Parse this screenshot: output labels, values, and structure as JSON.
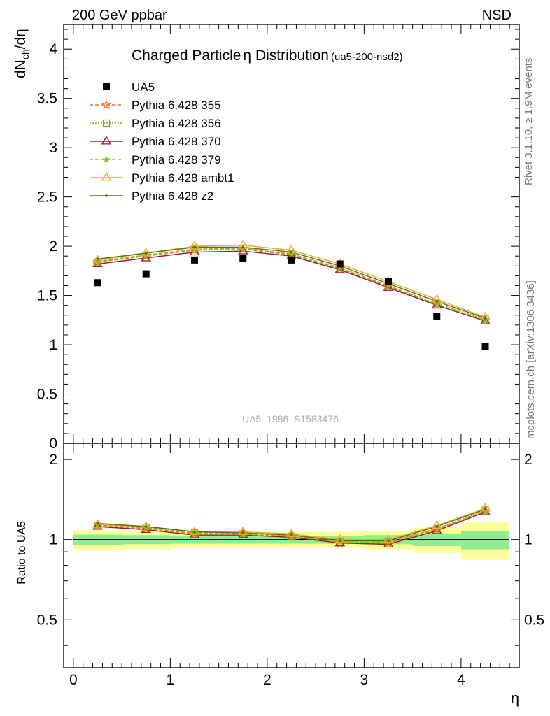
{
  "header": {
    "left": "200 GeV ppbar",
    "right": "NSD"
  },
  "side_labels": {
    "rivet": "Rivet 3.1.10, ≥ 1.9M events",
    "mcplots": "mcplots.cern.ch [arXiv:1306.3436]"
  },
  "colors": {
    "band_inner": "#90ee90",
    "band_outer": "#ffff99"
  },
  "chart_data": [
    {
      "panel": "main",
      "type": "line",
      "title": "Charged Particle",
      "title_symbol": "η",
      "title_rest": " Distribution",
      "title_tag": "(ua5-200-nsd2)",
      "ylabel_main": "dN",
      "ylabel_sub": "ch",
      "ylabel_rest": "/dη",
      "xlim": [
        -0.1,
        4.6
      ],
      "ylim": [
        0,
        4.25
      ],
      "y_ticks": [
        0,
        0.5,
        1,
        1.5,
        2,
        2.5,
        3,
        3.5,
        4
      ],
      "y_tick_labels": [
        "0",
        "0.5",
        "1",
        "1.5",
        "2",
        "2.5",
        "3",
        "3.5",
        "4"
      ],
      "watermark": "UA5_1986_S1583476",
      "data_points": {
        "name": "UA5",
        "marker": "square",
        "color": "#000000",
        "x": [
          0.25,
          0.75,
          1.25,
          1.75,
          2.25,
          2.75,
          3.25,
          3.75,
          4.25
        ],
        "y": [
          1.63,
          1.72,
          1.86,
          1.88,
          1.86,
          1.82,
          1.64,
          1.29,
          0.98
        ]
      },
      "x": [
        0.25,
        0.75,
        1.25,
        1.75,
        2.25,
        2.75,
        3.25,
        3.75,
        4.25
      ],
      "series": [
        {
          "name": "Pythia 6.428 355",
          "color": "#ff6a1e",
          "dash": "5,3",
          "marker": "star",
          "values": [
            1.84,
            1.9,
            1.96,
            1.97,
            1.91,
            1.77,
            1.59,
            1.41,
            1.25
          ]
        },
        {
          "name": "Pythia 6.428 356",
          "color": "#8aa31e",
          "dash": "2,2",
          "marker": "square-open",
          "values": [
            1.84,
            1.91,
            1.97,
            1.98,
            1.92,
            1.78,
            1.6,
            1.42,
            1.26
          ]
        },
        {
          "name": "Pythia 6.428 370",
          "color": "#9b1b2f",
          "dash": "",
          "marker": "triangle-open",
          "values": [
            1.82,
            1.88,
            1.94,
            1.95,
            1.9,
            1.76,
            1.58,
            1.4,
            1.24
          ]
        },
        {
          "name": "Pythia 6.428 379",
          "color": "#7fc21e",
          "dash": "5,3",
          "marker": "star-small",
          "values": [
            1.85,
            1.91,
            1.97,
            1.98,
            1.92,
            1.78,
            1.6,
            1.41,
            1.25
          ]
        },
        {
          "name": "Pythia 6.428 ambt1",
          "color": "#f5a623",
          "dash": "",
          "marker": "triangle-open",
          "values": [
            1.86,
            1.93,
            2.0,
            2.01,
            1.96,
            1.82,
            1.64,
            1.46,
            1.28
          ]
        },
        {
          "name": "Pythia 6.428 z2",
          "color": "#5f6b0f",
          "dash": "",
          "marker": "dot",
          "values": [
            1.87,
            1.93,
            1.99,
            1.99,
            1.94,
            1.8,
            1.62,
            1.44,
            1.27
          ]
        }
      ]
    },
    {
      "panel": "ratio",
      "type": "line",
      "ylabel": "Ratio to UA5",
      "xlabel": "η",
      "xlim": [
        -0.1,
        4.6
      ],
      "ylim": [
        0.33,
        2.3
      ],
      "x_ticks": [
        0,
        1,
        2,
        3,
        4
      ],
      "x_tick_labels": [
        "0",
        "1",
        "2",
        "3",
        "4"
      ],
      "y_ticks": [
        0.5,
        1,
        2
      ],
      "y_tick_labels": [
        "0.5",
        "1",
        "2"
      ],
      "band_x_edges": [
        0,
        0.5,
        1,
        1.5,
        2,
        2.5,
        3,
        3.5,
        4,
        4.5
      ],
      "band_inner": [
        0.045,
        0.04,
        0.035,
        0.035,
        0.035,
        0.035,
        0.04,
        0.055,
        0.08
      ],
      "band_outer": [
        0.085,
        0.08,
        0.07,
        0.07,
        0.07,
        0.07,
        0.08,
        0.11,
        0.16
      ],
      "x": [
        0.25,
        0.75,
        1.25,
        1.75,
        2.25,
        2.75,
        3.25,
        3.75,
        4.25
      ],
      "series": [
        {
          "name": "Pythia 6.428 355",
          "values": [
            1.13,
            1.1,
            1.05,
            1.05,
            1.03,
            0.97,
            0.97,
            1.09,
            1.28
          ]
        },
        {
          "name": "Pythia 6.428 356",
          "values": [
            1.13,
            1.11,
            1.06,
            1.05,
            1.03,
            0.98,
            0.98,
            1.1,
            1.29
          ]
        },
        {
          "name": "Pythia 6.428 370",
          "values": [
            1.12,
            1.09,
            1.04,
            1.04,
            1.02,
            0.97,
            0.96,
            1.08,
            1.27
          ]
        },
        {
          "name": "Pythia 6.428 379",
          "values": [
            1.14,
            1.11,
            1.06,
            1.05,
            1.03,
            0.98,
            0.98,
            1.1,
            1.28
          ]
        },
        {
          "name": "Pythia 6.428 ambt1",
          "values": [
            1.14,
            1.12,
            1.07,
            1.07,
            1.05,
            1.0,
            1.0,
            1.13,
            1.31
          ]
        },
        {
          "name": "Pythia 6.428 z2",
          "values": [
            1.15,
            1.12,
            1.07,
            1.06,
            1.04,
            0.99,
            0.99,
            1.12,
            1.3
          ]
        }
      ]
    }
  ]
}
